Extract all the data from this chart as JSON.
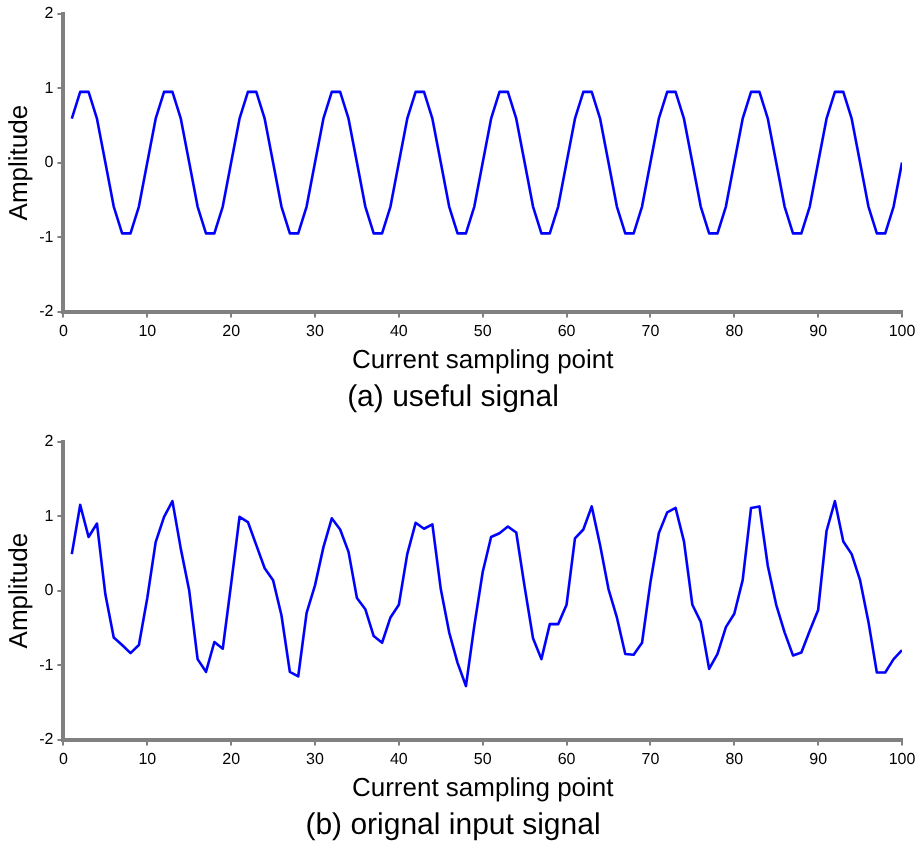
{
  "chart_data": [
    {
      "type": "line",
      "title": "(a) useful signal",
      "xlabel": "Current sampling point",
      "ylabel": "Amplitude",
      "xlim": [
        0,
        100
      ],
      "xticks": [
        0,
        10,
        20,
        30,
        40,
        50,
        60,
        70,
        80,
        90,
        100
      ],
      "ylim": [
        -2,
        2
      ],
      "yticks": [
        -2,
        -1,
        0,
        1,
        2
      ],
      "x": [
        1,
        2,
        3,
        4,
        5,
        6,
        7,
        8,
        9,
        10,
        11,
        12,
        13,
        14,
        15,
        16,
        17,
        18,
        19,
        20,
        21,
        22,
        23,
        24,
        25,
        26,
        27,
        28,
        29,
        30,
        31,
        32,
        33,
        34,
        35,
        36,
        37,
        38,
        39,
        40,
        41,
        42,
        43,
        44,
        45,
        46,
        47,
        48,
        49,
        50,
        51,
        52,
        53,
        54,
        55,
        56,
        57,
        58,
        59,
        60,
        61,
        62,
        63,
        64,
        65,
        66,
        67,
        68,
        69,
        70,
        71,
        72,
        73,
        74,
        75,
        76,
        77,
        78,
        79,
        80,
        81,
        82,
        83,
        84,
        85,
        86,
        87,
        88,
        89,
        90,
        91,
        92,
        93,
        94,
        95,
        96,
        97,
        98,
        99,
        100
      ],
      "series": [
        {
          "color": "#0000ff",
          "values": [
            0.59,
            0.95,
            0.95,
            0.59,
            0,
            -0.59,
            -0.95,
            -0.95,
            -0.59,
            0,
            0.59,
            0.95,
            0.95,
            0.59,
            0,
            -0.59,
            -0.95,
            -0.95,
            -0.59,
            0,
            0.59,
            0.95,
            0.95,
            0.59,
            0,
            -0.59,
            -0.95,
            -0.95,
            -0.59,
            0,
            0.59,
            0.95,
            0.95,
            0.59,
            0,
            -0.59,
            -0.95,
            -0.95,
            -0.59,
            0,
            0.59,
            0.95,
            0.95,
            0.59,
            0,
            -0.59,
            -0.95,
            -0.95,
            -0.59,
            0,
            0.59,
            0.95,
            0.95,
            0.59,
            0,
            -0.59,
            -0.95,
            -0.95,
            -0.59,
            0,
            0.59,
            0.95,
            0.95,
            0.59,
            0,
            -0.59,
            -0.95,
            -0.95,
            -0.59,
            0,
            0.59,
            0.95,
            0.95,
            0.59,
            0,
            -0.59,
            -0.95,
            -0.95,
            -0.59,
            0,
            0.59,
            0.95,
            0.95,
            0.59,
            0,
            -0.59,
            -0.95,
            -0.95,
            -0.59,
            0,
            0.59,
            0.95,
            0.95,
            0.59,
            0,
            -0.59,
            -0.95,
            -0.95,
            -0.59,
            0
          ]
        }
      ]
    },
    {
      "type": "line",
      "title": "(b) orignal input signal",
      "xlabel": "Current sampling point",
      "ylabel": "Amplitude",
      "xlim": [
        0,
        100
      ],
      "xticks": [
        0,
        10,
        20,
        30,
        40,
        50,
        60,
        70,
        80,
        90,
        100
      ],
      "ylim": [
        -2,
        2
      ],
      "yticks": [
        -2,
        -1,
        0,
        1,
        2
      ],
      "x": [
        1,
        2,
        3,
        4,
        5,
        6,
        7,
        8,
        9,
        10,
        11,
        12,
        13,
        14,
        15,
        16,
        17,
        18,
        19,
        20,
        21,
        22,
        23,
        24,
        25,
        26,
        27,
        28,
        29,
        30,
        31,
        32,
        33,
        34,
        35,
        36,
        37,
        38,
        39,
        40,
        41,
        42,
        43,
        44,
        45,
        46,
        47,
        48,
        49,
        50,
        51,
        52,
        53,
        54,
        55,
        56,
        57,
        58,
        59,
        60,
        61,
        62,
        63,
        64,
        65,
        66,
        67,
        68,
        69,
        70,
        71,
        72,
        73,
        74,
        75,
        76,
        77,
        78,
        79,
        80,
        81,
        82,
        83,
        84,
        85,
        86,
        87,
        88,
        89,
        90,
        91,
        92,
        93,
        94,
        95,
        96,
        97,
        98,
        99,
        100
      ],
      "series": [
        {
          "color": "#0000ff",
          "values": [
            0.49,
            1.15,
            0.72,
            0.9,
            -0.05,
            -0.63,
            -0.73,
            -0.84,
            -0.73,
            -0.1,
            0.65,
            0.99,
            1.2,
            0.56,
            0,
            -0.92,
            -1.09,
            -0.69,
            -0.78,
            0.09,
            0.99,
            0.92,
            0.61,
            0.3,
            0.14,
            -0.33,
            -1.09,
            -1.15,
            -0.3,
            0.07,
            0.58,
            0.97,
            0.82,
            0.52,
            -0.1,
            -0.25,
            -0.61,
            -0.7,
            -0.36,
            -0.19,
            0.49,
            0.91,
            0.83,
            0.89,
            0.02,
            -0.56,
            -0.97,
            -1.28,
            -0.47,
            0.25,
            0.72,
            0.77,
            0.86,
            0.78,
            0.05,
            -0.64,
            -0.92,
            -0.45,
            -0.45,
            -0.19,
            0.7,
            0.82,
            1.13,
            0.61,
            0.02,
            -0.36,
            -0.85,
            -0.86,
            -0.7,
            0.11,
            0.77,
            1.05,
            1.11,
            0.66,
            -0.19,
            -0.42,
            -1.05,
            -0.85,
            -0.49,
            -0.31,
            0.14,
            1.11,
            1.13,
            0.33,
            -0.19,
            -0.56,
            -0.87,
            -0.83,
            -0.54,
            -0.26,
            0.8,
            1.2,
            0.66,
            0.49,
            0.14,
            -0.42,
            -1.1,
            -1.1,
            -0.92,
            -0.8
          ]
        }
      ]
    }
  ]
}
